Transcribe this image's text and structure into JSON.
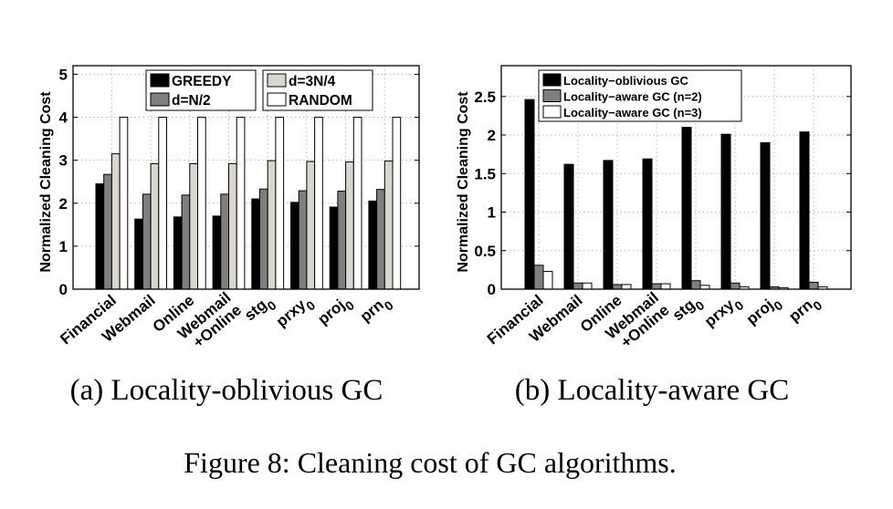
{
  "figure_caption": "Figure 8: Cleaning cost of GC algorithms.",
  "chart_data": [
    {
      "id": "a",
      "type": "bar",
      "caption": "(a) Locality-oblivious GC",
      "title": "",
      "xlabel": "",
      "ylabel": "Normalized Cleaning Cost",
      "ylim": [
        0,
        5.2
      ],
      "yticks": [
        "0",
        "1",
        "2",
        "3",
        "4",
        "5"
      ],
      "grid": true,
      "legend_position": "top (two columns)",
      "categories": [
        {
          "base": "Financial",
          "sub": ""
        },
        {
          "base": "Webmail",
          "sub": ""
        },
        {
          "base": "Online",
          "sub": ""
        },
        {
          "base": "Webmail\n+Online",
          "sub": ""
        },
        {
          "base": "stg",
          "sub": "0"
        },
        {
          "base": "prxy",
          "sub": "0"
        },
        {
          "base": "proj",
          "sub": "0"
        },
        {
          "base": "prn",
          "sub": "0"
        }
      ],
      "series": [
        {
          "name": "GREEDY",
          "color": "#000000",
          "values": [
            2.45,
            1.63,
            1.68,
            1.7,
            2.1,
            2.02,
            1.91,
            2.05
          ]
        },
        {
          "name": "d=N/2",
          "color": "#7f7f7f",
          "values": [
            2.67,
            2.21,
            2.19,
            2.21,
            2.33,
            2.29,
            2.28,
            2.32
          ]
        },
        {
          "name": "d=3N/4",
          "color": "#d9d6d0",
          "values": [
            3.15,
            2.92,
            2.92,
            2.92,
            2.99,
            2.97,
            2.96,
            2.98
          ]
        },
        {
          "name": "RANDOM",
          "color": "#ffffff",
          "values": [
            4.0,
            4.0,
            4.0,
            4.0,
            4.0,
            4.0,
            4.0,
            4.0
          ]
        }
      ]
    },
    {
      "id": "b",
      "type": "bar",
      "caption": "(b) Locality-aware GC",
      "title": "",
      "xlabel": "",
      "ylabel": "Normalized Cleaning Cost",
      "ylim": [
        0,
        2.9
      ],
      "yticks": [
        "0",
        "0.5",
        "1",
        "1.5",
        "2",
        "2.5"
      ],
      "grid": true,
      "legend_position": "top-left",
      "categories": [
        {
          "base": "Financial",
          "sub": ""
        },
        {
          "base": "Webmail",
          "sub": ""
        },
        {
          "base": "Online",
          "sub": ""
        },
        {
          "base": "Webmail\n+Online",
          "sub": ""
        },
        {
          "base": "stg",
          "sub": "0"
        },
        {
          "base": "prxy",
          "sub": "0"
        },
        {
          "base": "proj",
          "sub": "0"
        },
        {
          "base": "prn",
          "sub": "0"
        }
      ],
      "series": [
        {
          "name": "Locality−oblivious GC",
          "color": "#000000",
          "values": [
            2.46,
            1.62,
            1.67,
            1.69,
            2.1,
            2.01,
            1.9,
            2.04
          ]
        },
        {
          "name": "Locality−aware GC (n=2)",
          "color": "#7f7f7f",
          "values": [
            0.31,
            0.08,
            0.06,
            0.07,
            0.11,
            0.08,
            0.03,
            0.09
          ]
        },
        {
          "name": "Locality−aware GC (n=3)",
          "color": "#ffffff",
          "values": [
            0.23,
            0.08,
            0.06,
            0.07,
            0.05,
            0.03,
            0.02,
            0.03
          ]
        }
      ]
    }
  ]
}
